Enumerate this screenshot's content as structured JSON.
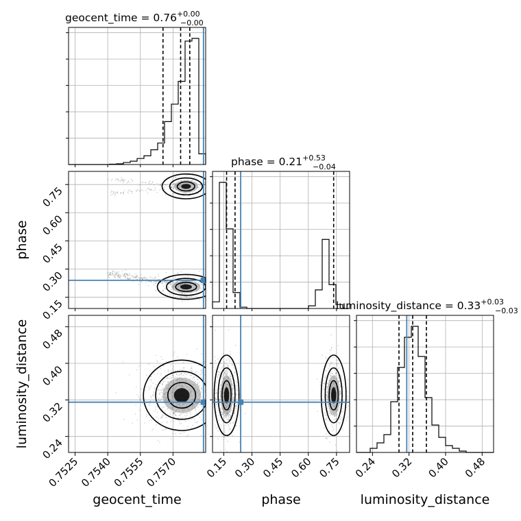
{
  "chart_data": {
    "type": "corner",
    "parameters": [
      "geocent_time",
      "phase",
      "luminosity_distance"
    ],
    "truth_color": "#4682b4",
    "truths": {
      "geocent_time": 0.7584,
      "phase": 0.24,
      "luminosity_distance": 0.315
    },
    "summaries": {
      "geocent_time": {
        "title": "geocent_time = 0.76",
        "upper": "+0.00",
        "lower": "−0.00",
        "quantiles": [
          0.75654,
          0.75735,
          0.75777
        ]
      },
      "phase": {
        "title": "phase = 0.21",
        "upper": "+0.53",
        "lower": "−0.04",
        "quantiles": [
          0.165,
          0.21,
          0.735
        ]
      },
      "luminosity_distance": {
        "title": "luminosity_distance = 0.33",
        "upper": "+0.03",
        "lower": "−0.03",
        "quantiles": [
          0.298,
          0.328,
          0.358
        ]
      }
    },
    "ranges": {
      "geocent_time": [
        0.7522,
        0.7585
      ],
      "phase": [
        0.09,
        0.82
      ],
      "luminosity_distance": [
        0.205,
        0.505
      ]
    },
    "ticks": {
      "geocent_time": [
        "0.7525",
        "0.7540",
        "0.7555",
        "0.7570"
      ],
      "phase": [
        "0.15",
        "0.30",
        "0.45",
        "0.60",
        "0.75"
      ],
      "luminosity_distance": [
        "0.24",
        "0.32",
        "0.40",
        "0.48"
      ]
    },
    "histograms": {
      "geocent_time": {
        "edges_start": 0.7522,
        "bin_width": 0.000315,
        "counts": [
          0,
          0,
          0,
          0,
          0,
          0,
          0.3,
          0.5,
          1.5,
          2.5,
          4.5,
          6.5,
          11,
          16,
          32,
          45,
          62,
          92,
          94,
          8
        ]
      },
      "phase": {
        "edges_start": 0.09,
        "bin_width": 0.0365,
        "counts": [
          5,
          95,
          60,
          12,
          1,
          0,
          0,
          0,
          0,
          0,
          0,
          0,
          0,
          0,
          2,
          14,
          52,
          18,
          3,
          0
        ]
      },
      "luminosity_distance": {
        "edges_start": 0.205,
        "bin_width": 0.015,
        "counts": [
          0,
          0,
          3,
          7,
          13,
          37,
          62,
          84,
          92,
          70,
          40,
          20,
          11,
          5,
          3,
          1,
          0,
          0,
          0,
          0
        ]
      }
    },
    "grid": true
  }
}
